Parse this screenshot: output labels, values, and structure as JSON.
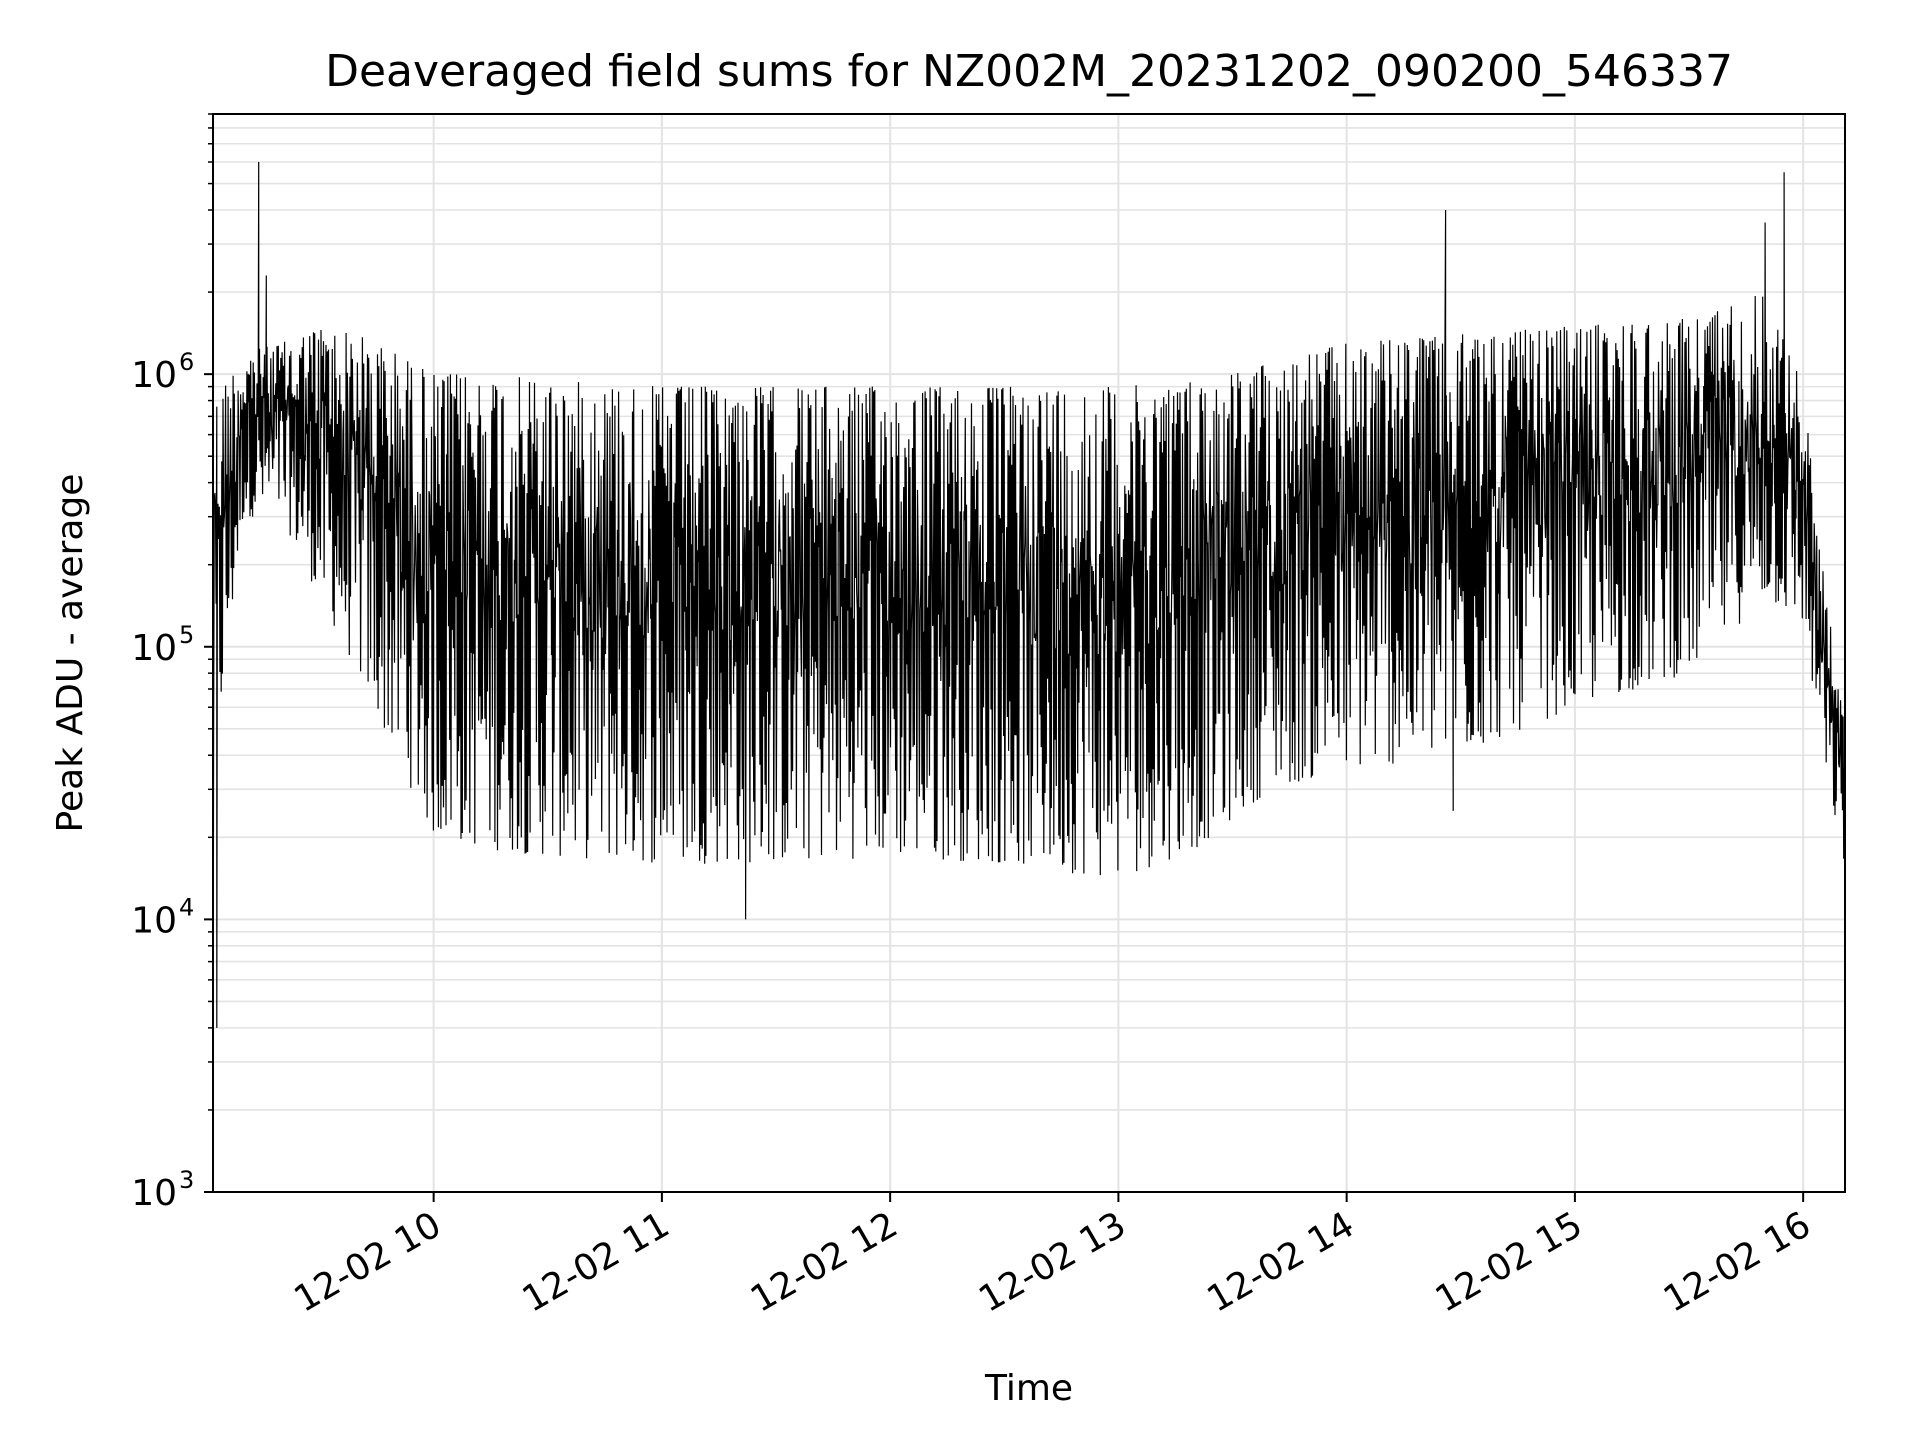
{
  "chart_data": {
    "type": "line",
    "title": "Deaveraged field sums for NZ002M_20231202_090200_546337",
    "xlabel": "Time",
    "ylabel": "Peak ADU - average",
    "yscale": "log",
    "ylim": [
      1000,
      9000000
    ],
    "xlim": [
      "2023-12-02 09:02",
      "2023-12-02 16:11"
    ],
    "grid": true,
    "line_color": "#000000",
    "x_ticks": [
      {
        "time": "2023-12-02 10:00",
        "label": "12-02 10"
      },
      {
        "time": "2023-12-02 11:00",
        "label": "12-02 11"
      },
      {
        "time": "2023-12-02 12:00",
        "label": "12-02 12"
      },
      {
        "time": "2023-12-02 13:00",
        "label": "12-02 13"
      },
      {
        "time": "2023-12-02 14:00",
        "label": "12-02 14"
      },
      {
        "time": "2023-12-02 15:00",
        "label": "12-02 15"
      },
      {
        "time": "2023-12-02 16:00",
        "label": "12-02 16"
      }
    ],
    "y_ticks": [
      {
        "value": 1000,
        "base": "10",
        "exp": "3"
      },
      {
        "value": 10000,
        "base": "10",
        "exp": "4"
      },
      {
        "value": 100000,
        "base": "10",
        "exp": "5"
      },
      {
        "value": 1000000,
        "base": "10",
        "exp": "6"
      }
    ],
    "envelope": {
      "time": [
        "2023-12-02 09:02",
        "2023-12-02 09:10",
        "2023-12-02 09:20",
        "2023-12-02 09:30",
        "2023-12-02 09:40",
        "2023-12-02 09:50",
        "2023-12-02 10:00",
        "2023-12-02 10:15",
        "2023-12-02 10:30",
        "2023-12-02 11:00",
        "2023-12-02 11:30",
        "2023-12-02 12:00",
        "2023-12-02 12:30",
        "2023-12-02 13:00",
        "2023-12-02 13:20",
        "2023-12-02 13:40",
        "2023-12-02 14:00",
        "2023-12-02 14:30",
        "2023-12-02 15:00",
        "2023-12-02 15:30",
        "2023-12-02 15:50",
        "2023-12-02 16:00",
        "2023-12-02 16:05",
        "2023-12-02 16:11"
      ],
      "upper": [
        800000,
        1200000,
        1300000,
        1500000,
        1400000,
        1200000,
        1000000,
        1000000,
        950000,
        900000,
        900000,
        900000,
        900000,
        900000,
        950000,
        1100000,
        1300000,
        1400000,
        1500000,
        1600000,
        2000000,
        900000,
        200000,
        50000
      ],
      "lower": [
        30000,
        300000,
        300000,
        150000,
        80000,
        40000,
        20000,
        18000,
        17000,
        16000,
        16000,
        17000,
        16000,
        14000,
        18000,
        30000,
        35000,
        40000,
        60000,
        80000,
        150000,
        120000,
        40000,
        15000
      ]
    },
    "spikes": [
      {
        "time": "2023-12-02 09:02",
        "value": 1500
      },
      {
        "time": "2023-12-02 09:03",
        "value": 4000
      },
      {
        "time": "2023-12-02 09:14",
        "value": 6000000
      },
      {
        "time": "2023-12-02 09:16",
        "value": 2300000
      },
      {
        "time": "2023-12-02 11:22",
        "value": 10000
      },
      {
        "time": "2023-12-02 14:26",
        "value": 4000000
      },
      {
        "time": "2023-12-02 14:28",
        "value": 25000
      },
      {
        "time": "2023-12-02 15:55",
        "value": 5500000
      },
      {
        "time": "2023-12-02 15:50",
        "value": 3600000
      },
      {
        "time": "2023-12-02 16:11",
        "value": 11000
      }
    ]
  }
}
